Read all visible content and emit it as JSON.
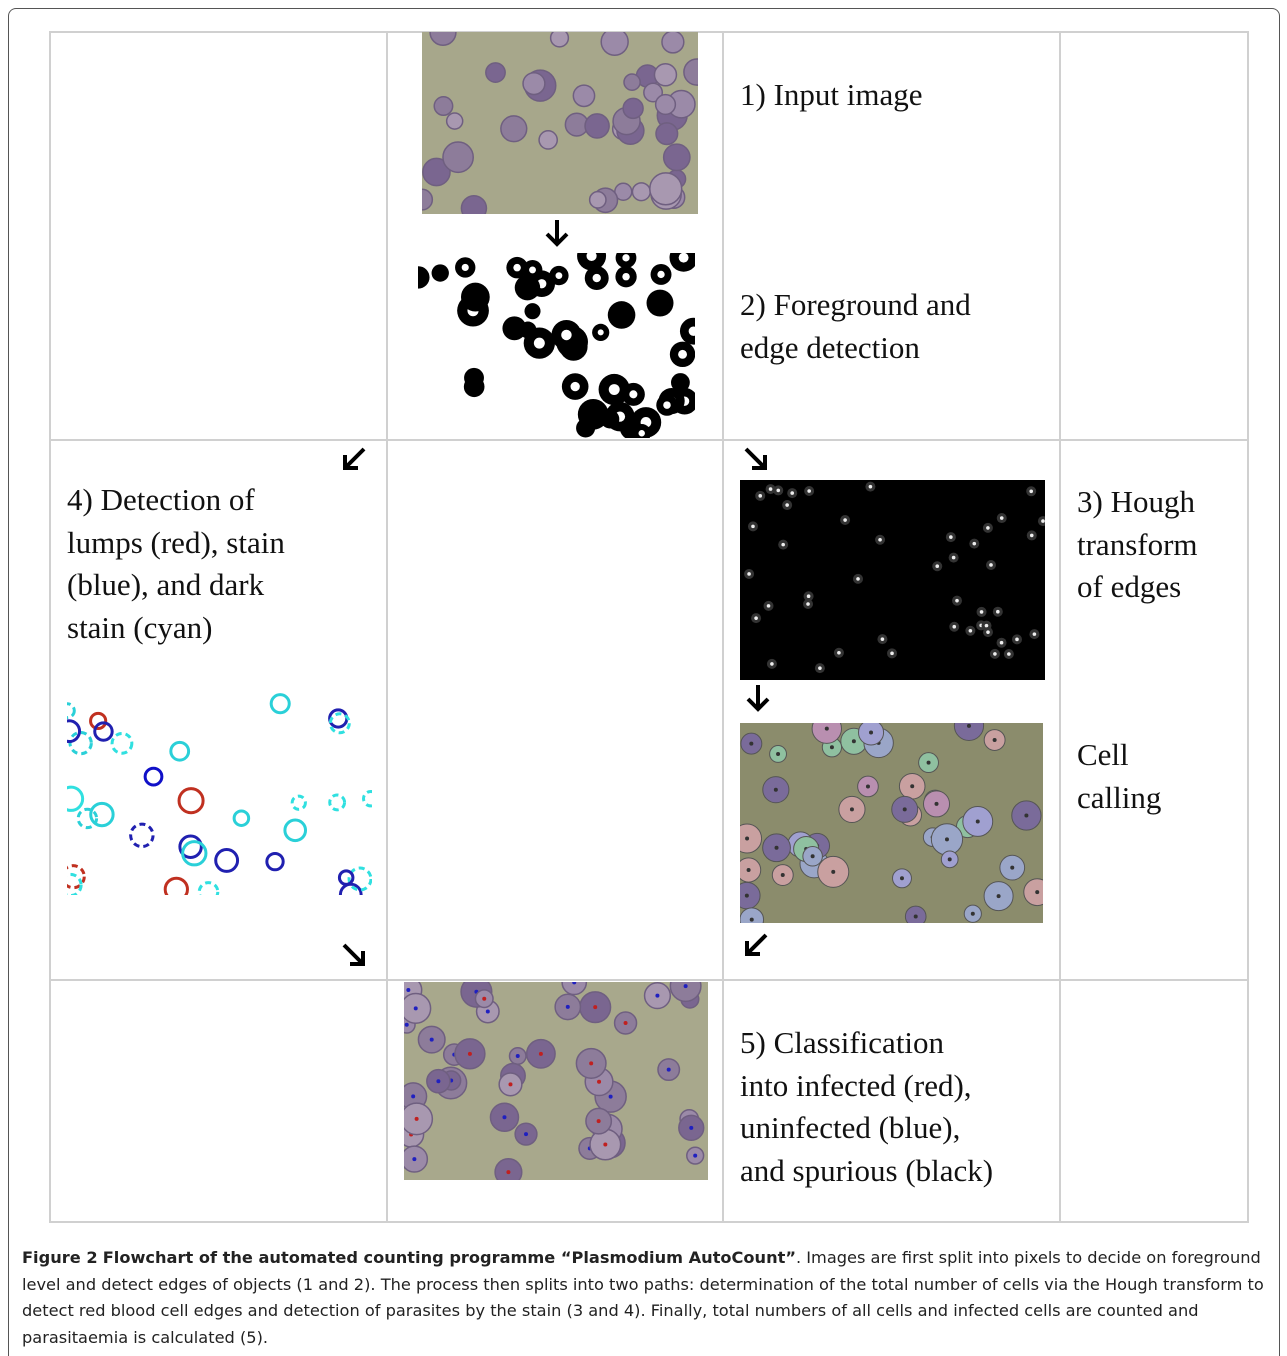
{
  "figure": {
    "steps": [
      {
        "lines": [
          "1) Input image"
        ]
      },
      {
        "lines": [
          "2) Foreground and",
          "edge detection"
        ]
      },
      {
        "lines": [
          "3) Hough",
          "transform",
          "of edges"
        ]
      },
      {
        "lines": [
          "Cell",
          "calling"
        ]
      },
      {
        "lines": [
          "4) Detection of",
          "lumps (red), stain",
          "(blue), and dark",
          "stain (cyan)"
        ]
      },
      {
        "lines": [
          "5) Classification",
          "into infected (red),",
          "uninfected (blue),",
          "and spurious (black)"
        ]
      }
    ],
    "caption": {
      "label": "Figure 2",
      "title": "Flowchart of the automated counting programme “Plasmodium AutoCount”",
      "text": ". Images are first split into pixels to decide on foreground level and detect edges of objects (1 and 2). The process then splits into two paths: determination of the total number of cells via the Hough transform to detect red blood cell edges and detection of parasites by the stain (3 and 4). Finally, total numbers of all cells and infected cells are counted and parasitaemia is calculated (5)."
    }
  }
}
